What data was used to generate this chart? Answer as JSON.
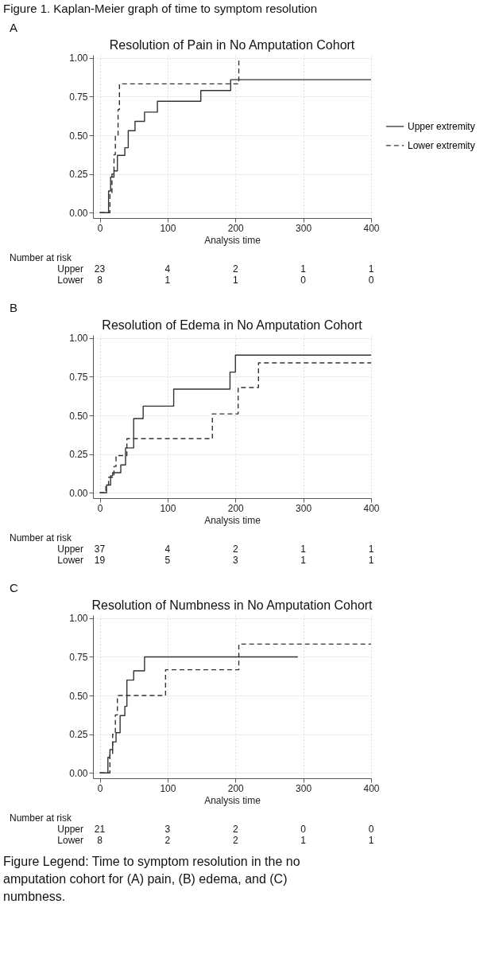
{
  "chart_data": [
    {
      "type": "step",
      "title": "Figure 1. Kaplan-Meier graph of time to symptom resolution",
      "subtitle": "Resolution of Pain in No Amputation Cohort",
      "xlabel": "Analysis time",
      "xlim": [
        -10,
        400
      ],
      "ylim": [
        -0.035,
        1.02
      ],
      "xticks": [
        0,
        100,
        200,
        300,
        400
      ],
      "yticks": [
        {
          "value": 0,
          "label": "0.00"
        },
        {
          "value": 0.25,
          "label": "0.25"
        },
        {
          "value": 0.5,
          "label": "0.50"
        },
        {
          "value": 0.75,
          "label": "0.75"
        },
        {
          "value": 1,
          "label": "1.00"
        }
      ],
      "grid": true,
      "legend": "right",
      "series": [
        {
          "name": "Upper extremity",
          "color": "#333333",
          "line_style": "solid",
          "x": [
            0,
            13,
            16,
            21,
            26,
            37,
            42,
            52,
            66,
            85,
            149,
            193,
            400
          ],
          "values": [
            0,
            0.14,
            0.23,
            0.27,
            0.37,
            0.42,
            0.53,
            0.59,
            0.65,
            0.72,
            0.79,
            0.86,
            0.86
          ]
        },
        {
          "name": "Lower extremity",
          "color": "#333333",
          "line_style": "dashed",
          "x": [
            0,
            15,
            18,
            21,
            23,
            27,
            29,
            205
          ],
          "values": [
            0,
            0.125,
            0.25,
            0.375,
            0.5,
            0.667,
            0.833,
            1.0
          ]
        }
      ],
      "annotations": [
        "A",
        "Number at risk",
        "Upper",
        "23",
        "4",
        "2",
        "1",
        "1",
        "Lower",
        "8",
        "1",
        "1",
        "0",
        "0"
      ]
    },
    {
      "type": "step",
      "title": "Resolution of Edema in No Amputation Cohort",
      "xlabel": "Analysis time",
      "xlim": [
        -10,
        400
      ],
      "ylim": [
        -0.035,
        1.02
      ],
      "xticks": [
        0,
        100,
        200,
        300,
        400
      ],
      "yticks": [
        {
          "value": 0,
          "label": "0.00"
        },
        {
          "value": 0.25,
          "label": "0.25"
        },
        {
          "value": 0.5,
          "label": "0.50"
        },
        {
          "value": 0.75,
          "label": "0.75"
        },
        {
          "value": 1,
          "label": "1.00"
        }
      ],
      "grid": true,
      "legend": "right",
      "series": [
        {
          "name": "Upper extremity",
          "color": "#333333",
          "line_style": "solid",
          "x": [
            0,
            10,
            16,
            19,
            31,
            38,
            50,
            64,
            109,
            192,
            200,
            400
          ],
          "values": [
            0,
            0.05,
            0.11,
            0.13,
            0.18,
            0.29,
            0.48,
            0.56,
            0.67,
            0.78,
            0.89,
            0.89
          ]
        },
        {
          "name": "Lower extremity",
          "color": "#333333",
          "line_style": "dashed",
          "x": [
            0,
            9,
            13,
            21,
            24,
            40,
            166,
            204,
            234,
            400
          ],
          "values": [
            0,
            0.05,
            0.1,
            0.17,
            0.24,
            0.35,
            0.51,
            0.68,
            0.84,
            0.84
          ]
        }
      ],
      "annotations": [
        "B",
        "Number at risk",
        "Upper",
        "37",
        "4",
        "2",
        "1",
        "1",
        "Lower",
        "19",
        "5",
        "3",
        "1",
        "1"
      ]
    },
    {
      "type": "step",
      "title": "Resolution of Numbness in No Amputation Cohort",
      "xlabel": "Analysis time",
      "xlim": [
        -10,
        400
      ],
      "ylim": [
        -0.035,
        1.02
      ],
      "xticks": [
        0,
        100,
        200,
        300,
        400
      ],
      "yticks": [
        {
          "value": 0,
          "label": "0.00"
        },
        {
          "value": 0.25,
          "label": "0.25"
        },
        {
          "value": 0.5,
          "label": "0.50"
        },
        {
          "value": 0.75,
          "label": "0.75"
        },
        {
          "value": 1,
          "label": "1.00"
        }
      ],
      "grid": true,
      "legend": "right",
      "series": [
        {
          "name": "Upper extremity",
          "color": "#333333",
          "line_style": "solid",
          "x": [
            0,
            12,
            15,
            19,
            24,
            30,
            37,
            40,
            50,
            66,
            292
          ],
          "values": [
            0,
            0.1,
            0.15,
            0.2,
            0.26,
            0.37,
            0.43,
            0.6,
            0.66,
            0.75,
            0.75
          ]
        },
        {
          "name": "Lower extremity",
          "color": "#333333",
          "line_style": "dashed",
          "x": [
            0,
            15,
            19,
            23,
            26,
            97,
            205,
            400
          ],
          "values": [
            0,
            0.125,
            0.25,
            0.375,
            0.5,
            0.667,
            0.833,
            0.833
          ]
        }
      ],
      "annotations": [
        "C",
        "Number at risk",
        "Upper",
        "21",
        "3",
        "2",
        "0",
        "0",
        "Lower",
        "8",
        "2",
        "2",
        "1",
        "1",
        "Figure Legend: Time to symptom resolution in the no amputation cohort for (A) pain, (B) edema, and (C) numbness."
      ]
    }
  ]
}
